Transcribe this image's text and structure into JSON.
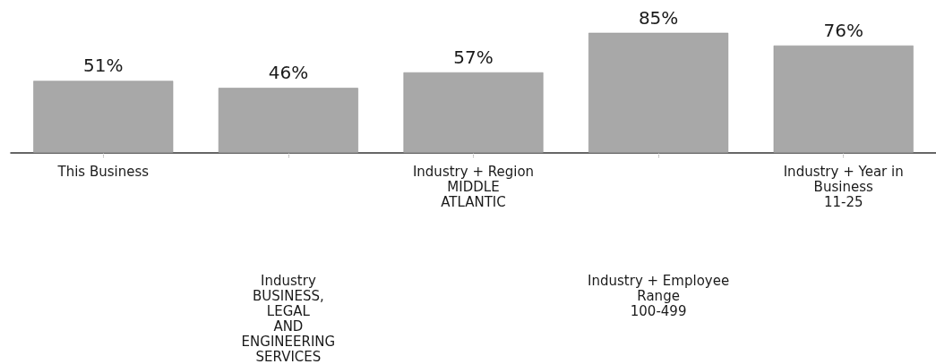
{
  "chart_data": {
    "type": "bar",
    "categories": [
      "This Business",
      "Industry\nBUSINESS,\nLEGAL\nAND\nENGINEERING\nSERVICES",
      "Industry + Region\nMIDDLE\nATLANTIC",
      "Industry + Employee\nRange\n100-499",
      "Industry + Year in\nBusiness\n11-25"
    ],
    "values": [
      51,
      46,
      57,
      85,
      76
    ],
    "value_labels": [
      "51%",
      "46%",
      "57%",
      "85%",
      "76%"
    ],
    "color": "#a8a8a8"
  }
}
